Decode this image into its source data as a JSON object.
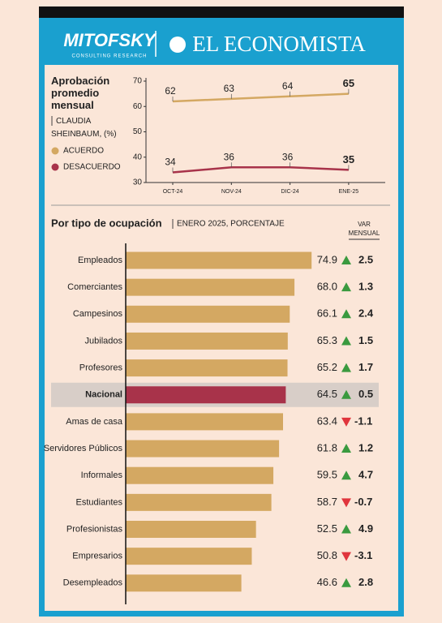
{
  "header": {
    "left_logo": "MITOFSKY",
    "left_tagline": "CONSULTING RESEARCH",
    "right_logo": "EL ECONOMISTA"
  },
  "chart_data": [
    {
      "type": "line",
      "title": "Aprobación promedio mensual",
      "subtitle": "CLAUDIA SHEINBAUM, (%)",
      "categories": [
        "OCT-24",
        "NOV-24",
        "DIC-24",
        "ENE-25"
      ],
      "series": [
        {
          "name": "ACUERDO",
          "color": "#d4a862",
          "values": [
            62,
            63,
            64,
            65
          ]
        },
        {
          "name": "DESACUERDO",
          "color": "#a8334a",
          "values": [
            34,
            36,
            36,
            35
          ]
        }
      ],
      "ylim": [
        30,
        70
      ],
      "yticks": [
        30,
        40,
        50,
        60,
        70
      ]
    },
    {
      "type": "hbar",
      "title": "Por tipo de ocupación",
      "subtitle": "ENERO 2025, PORCENTAJE",
      "change_title": [
        "VAR",
        "MENSUAL"
      ],
      "categories": [
        "Empleados",
        "Comerciantes",
        "Campesinos",
        "Jubilados",
        "Profesores",
        "Nacional",
        "Amas de casa",
        "Servidores Públicos",
        "Informales",
        "Estudiantes",
        "Profesionistas",
        "Empresarios",
        "Desempleados"
      ],
      "values": [
        74.9,
        68.0,
        66.1,
        65.3,
        65.2,
        64.5,
        63.4,
        61.8,
        59.5,
        58.7,
        52.5,
        50.8,
        46.6
      ],
      "value_labels": [
        "74.9",
        "68.0",
        "66.1",
        "65.3",
        "65.2",
        "64.5",
        "63.4",
        "61.8",
        "59.5",
        "58.7",
        "52.5",
        "50.8",
        "46.6"
      ],
      "changes": [
        2.5,
        1.3,
        2.4,
        1.5,
        1.7,
        0.5,
        -1.1,
        1.2,
        4.7,
        -0.7,
        4.9,
        -3.1,
        2.8
      ],
      "color": "#d4a862",
      "highlight_index": 5,
      "highlight_color": "#a8334a",
      "up_color": "#3a9a3f",
      "down_color": "#e0353d"
    }
  ]
}
